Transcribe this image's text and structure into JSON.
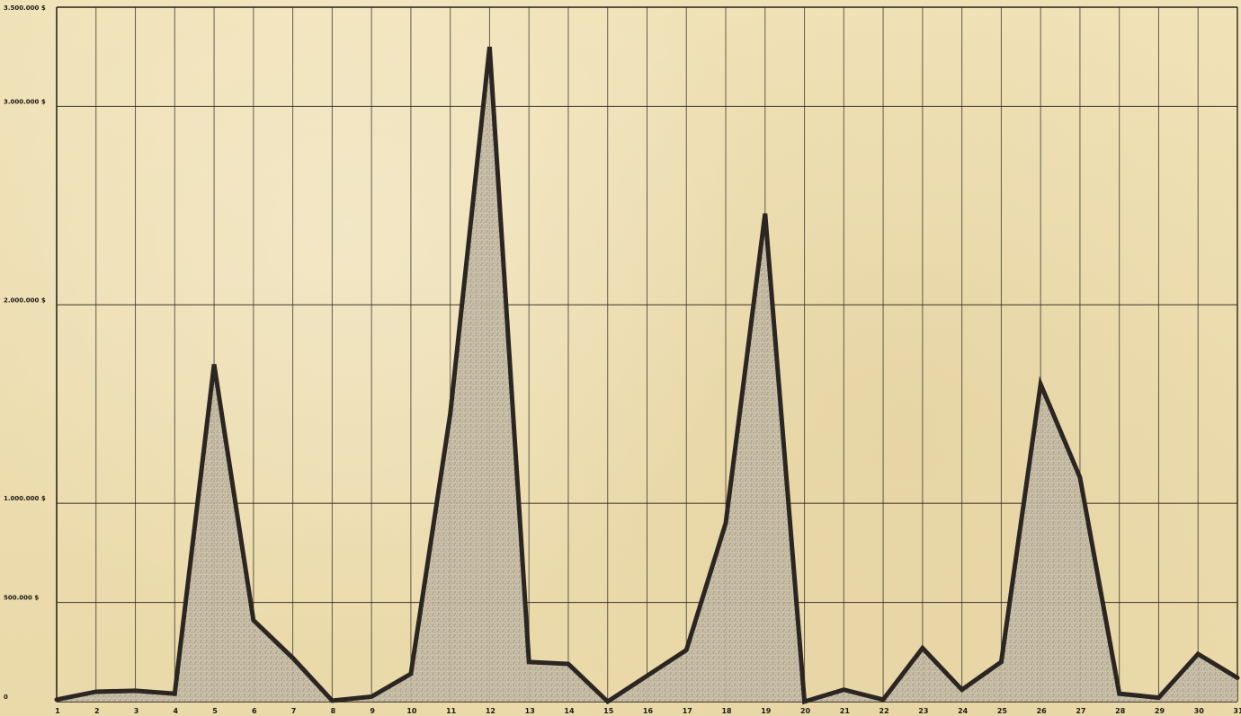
{
  "chart_data": {
    "type": "area",
    "x_tick_labels": [
      "1",
      "2",
      "3",
      "4",
      "5",
      "6",
      "7",
      "8",
      "9",
      "10",
      "11",
      "12",
      "13",
      "14",
      "15",
      "16",
      "17",
      "18",
      "19",
      "20",
      "21",
      "22",
      "23",
      "24",
      "25",
      "26",
      "27",
      "28",
      "29",
      "30",
      "31"
    ],
    "x": [
      1,
      2,
      3,
      4,
      5,
      6,
      7,
      8,
      9,
      10,
      11,
      12,
      13,
      14,
      15,
      16,
      17,
      18,
      19,
      20,
      21,
      22,
      23,
      24,
      25,
      26,
      27,
      28,
      29,
      30,
      31
    ],
    "values": [
      10000,
      50000,
      55000,
      40000,
      1700000,
      410000,
      220000,
      5000,
      25000,
      140000,
      1450000,
      3300000,
      200000,
      190000,
      0,
      130000,
      260000,
      900000,
      2460000,
      0,
      60000,
      10000,
      270000,
      60000,
      200000,
      1600000,
      1130000,
      40000,
      20000,
      240000,
      120000
    ],
    "y_tick_labels": [
      "0",
      "500.000 $",
      "1.000.000 $",
      "2.000.000 $",
      "3.000.000 $",
      "3.500.000 $"
    ],
    "y_ticks": [
      0,
      500000,
      1000000,
      2000000,
      3000000,
      3500000
    ],
    "ylim": [
      0,
      3500000
    ],
    "xlim": [
      1,
      31
    ],
    "grid": true,
    "colors": {
      "paper": "#eedfb3",
      "grid": "#2d281f",
      "line": "#2b2622",
      "fill": "#bdb09a"
    }
  }
}
